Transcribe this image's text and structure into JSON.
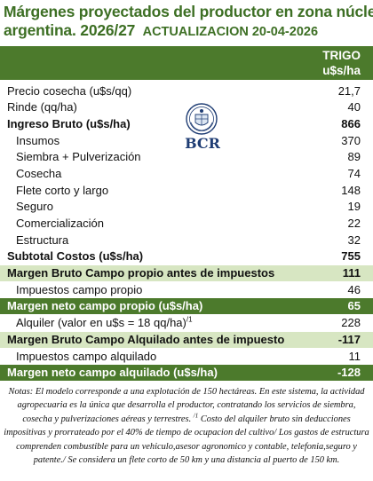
{
  "title": {
    "line1": "Márgenes  proyectados del productor en zona núcleo",
    "line2": "argentina. 2026/27",
    "update": "ACTUALIZACION 20-04-2026"
  },
  "header": {
    "crop": "TRIGO",
    "unit": "u$s/ha"
  },
  "logo": {
    "text": "BCR",
    "color": "#1f3d74"
  },
  "colors": {
    "title": "#3d6f24",
    "dark_band": "#4c7a2c",
    "light_band": "#d7e6c2"
  },
  "rows": [
    {
      "label": "Precio cosecha (u$s/qq)",
      "value": "21,7"
    },
    {
      "label": "Rinde (qq/ha)",
      "value": "40"
    },
    {
      "label": "Ingreso Bruto (u$s/ha)",
      "value": "866"
    },
    {
      "label": "Insumos",
      "value": "370"
    },
    {
      "label": "Siembra + Pulverización",
      "value": "89"
    },
    {
      "label": "Cosecha",
      "value": "74"
    },
    {
      "label": "Flete corto y largo",
      "value": "148"
    },
    {
      "label": "Seguro",
      "value": "19"
    },
    {
      "label": "Comercialización",
      "value": "22"
    },
    {
      "label": "Estructura",
      "value": "32"
    },
    {
      "label": "Subtotal Costos (u$s/ha)",
      "value": "755"
    },
    {
      "label": "Margen Bruto Campo propio antes de impuestos",
      "value": "111"
    },
    {
      "label": "Impuestos  campo propio",
      "value": "46"
    },
    {
      "label": "Margen neto campo propio (u$s/ha)",
      "value": "65"
    },
    {
      "label": "Alquiler (valor en u$s = 18 qq/ha)",
      "footnote": "/1",
      "value": "228"
    },
    {
      "label": "Margen Bruto Campo Alquilado antes de impuesto",
      "value": "-117"
    },
    {
      "label": "Impuestos campo alquilado",
      "value": "11"
    },
    {
      "label": "Margen neto campo alquilado (u$s/ha)",
      "value": "-128"
    }
  ],
  "notes": {
    "part1": "Notas: El modelo corresponde a una explotación de 150 hectáreas. En este sistema, la actividad agropecuaria es la única que desarrolla el productor, contratando los servicios de siembra, cosecha y pulverizaciones aéreas y terrestres.",
    "footnote_mark": "/1",
    "part2": " Costo del alquiler bruto sin deducciones impositivas y prorrateado por el 40% de tiempo de ocupacion del cultivo/ Los gastos de estructura comprenden combustible para un vehiculo,asesor agronomico y contable, telefonia,seguro y patente./ Se considera un flete corto de 50 km y una distancia al puerto de 150 km."
  }
}
